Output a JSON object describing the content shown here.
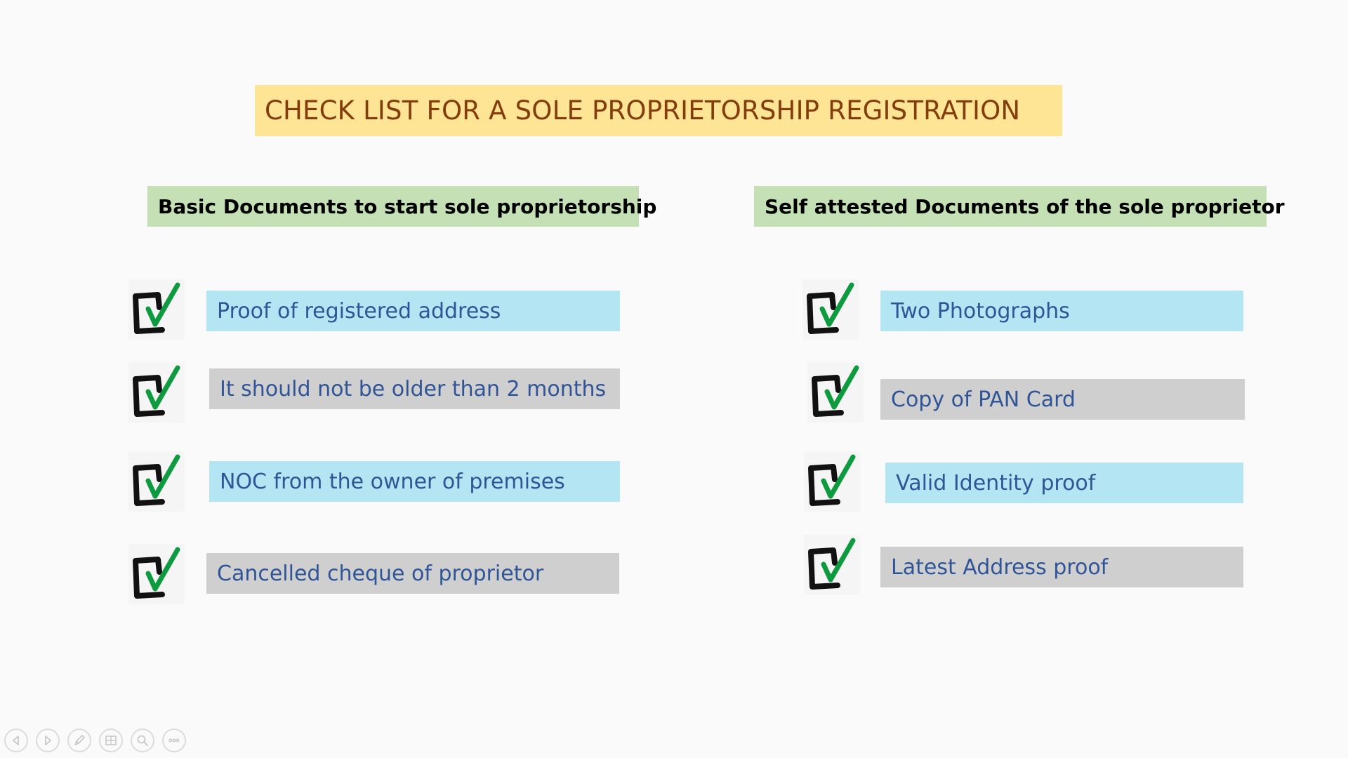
{
  "title": "CHECK LIST FOR A SOLE PROPRIETORSHIP REGISTRATION",
  "left_column": {
    "heading": "Basic Documents to start sole proprietorship",
    "items": [
      {
        "label": "Proof of registered address",
        "color": "#b4e5f2"
      },
      {
        "label": "It should not be older than 2 months",
        "color": "#d0cfd0"
      },
      {
        "label": "NOC from the owner of premises",
        "color": "#b4e5f2"
      },
      {
        "label": "Cancelled cheque of proprietor",
        "color": "#d0cfd0"
      }
    ]
  },
  "right_column": {
    "heading": "Self attested Documents of the sole proprietor",
    "items": [
      {
        "label": "Two Photographs",
        "color": "#b4e5f2"
      },
      {
        "label": "Copy of PAN Card",
        "color": "#d0cfd0"
      },
      {
        "label": "Valid Identity proof",
        "color": "#b4e5f2"
      },
      {
        "label": "Latest Address proof",
        "color": "#d0cfd0"
      }
    ]
  },
  "colors": {
    "title_bg": "#fde595",
    "title_text": "#843c0c",
    "heading_bg": "#c5e0b4",
    "item_text": "#2f5597",
    "check_green": "#0e9a3e"
  },
  "toolbar": {
    "buttons": [
      "previous-icon",
      "next-icon",
      "pen-icon",
      "slides-grid-icon",
      "zoom-icon",
      "more-icon"
    ]
  }
}
